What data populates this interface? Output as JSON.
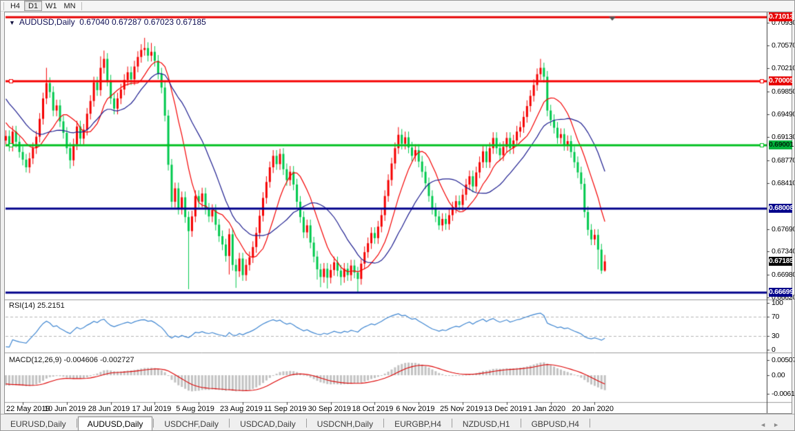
{
  "toolbar": {
    "buttons": [
      {
        "label": "H4",
        "active": false
      },
      {
        "label": "D1",
        "active": true
      },
      {
        "label": "W1",
        "active": false
      },
      {
        "label": "MN",
        "active": false
      }
    ]
  },
  "chart": {
    "title": {
      "symbol": "AUDUSD,Daily",
      "ohlc": "0.67040 0.67287 0.67023 0.67185"
    },
    "colors": {
      "bull": "#f50000",
      "bear": "#00c94d",
      "ma_fast": "#f50000",
      "ma_slow": "#1c1c8f",
      "axis_line": "#3c3c3c",
      "pane_border": "#9c9c9c",
      "level_dash": "#b4b4b4"
    },
    "y_axis_ticks": [
      "0.70930",
      "0.70570",
      "0.70210",
      "0.69850",
      "0.69490",
      "0.69130",
      "0.68770",
      "0.68410",
      "0.67690",
      "0.67340",
      "0.66980",
      "0.66620"
    ],
    "badges": [
      {
        "label": "0.71013",
        "bg": "#e60000",
        "fg": "#ffffff"
      },
      {
        "label": "0.70005",
        "bg": "#e60000",
        "fg": "#ffffff"
      },
      {
        "label": "0.69001",
        "bg": "#00b43c",
        "fg": "#00280c"
      },
      {
        "label": "0.68008",
        "bg": "#00008b",
        "fg": "#ffffff"
      },
      {
        "label": "0.67185",
        "bg": "#000000",
        "fg": "#ffffff"
      },
      {
        "label": "0.66699",
        "bg": "#00008b",
        "fg": "#ffffff"
      }
    ],
    "hlines": [
      {
        "value": 0.71013,
        "color": "#e60000",
        "width": 3,
        "anchors": false,
        "shift_marker": true
      },
      {
        "value": 0.70005,
        "color": "#f50000",
        "width": 3,
        "anchors": true,
        "shift_marker": false
      },
      {
        "value": 0.69001,
        "color": "#00c020",
        "width": 3,
        "anchors": true,
        "shift_marker": false
      },
      {
        "value": 0.68008,
        "color": "#00008b",
        "width": 3,
        "anchors": false,
        "shift_marker": false
      },
      {
        "value": 0.66699,
        "color": "#00008b",
        "width": 3,
        "anchors": false,
        "shift_marker": false
      }
    ],
    "x_axis_labels": [
      "22 May 2019",
      "10 Jun 2019",
      "28 Jun 2019",
      "17 Jul 2019",
      "5 Aug 2019",
      "23 Aug 2019",
      "11 Sep 2019",
      "30 Sep 2019",
      "18 Oct 2019",
      "6 Nov 2019",
      "25 Nov 2019",
      "13 Dec 2019",
      "1 Jan 2020",
      "20 Jan 2020"
    ]
  },
  "chart_data": {
    "type": "candlestick",
    "symbol": "AUDUSD",
    "timeframe": "Daily",
    "current_bar_ohlc": [
      0.6704,
      0.67287,
      0.67023,
      0.67185
    ],
    "ma_seed": [
      0.706,
      0.705,
      0.7042,
      0.7032,
      0.7022,
      0.7014,
      0.7004,
      0.6996,
      0.6986,
      0.6978,
      0.698,
      0.6968,
      0.696,
      0.695,
      0.694,
      0.6932,
      0.6936,
      0.6928,
      0.692,
      0.6912
    ],
    "closes": [
      0.6915,
      0.69,
      0.6922,
      0.6906,
      0.689,
      0.6878,
      0.6866,
      0.688,
      0.6896,
      0.6914,
      0.6942,
      0.6974,
      0.6998,
      0.6984,
      0.6955,
      0.6963,
      0.6938,
      0.692,
      0.6896,
      0.6877,
      0.6902,
      0.693,
      0.6911,
      0.6925,
      0.695,
      0.697,
      0.6999,
      0.6987,
      0.7022,
      0.7036,
      0.7002,
      0.6974,
      0.6958,
      0.6974,
      0.6988,
      0.7003,
      0.7015,
      0.7004,
      0.7024,
      0.7039,
      0.705,
      0.7053,
      0.7041,
      0.7047,
      0.7033,
      0.7013,
      0.6991,
      0.6947,
      0.687,
      0.6812,
      0.6833,
      0.6801,
      0.6819,
      0.6788,
      0.6766,
      0.6789,
      0.6821,
      0.6812,
      0.6825,
      0.6801,
      0.6789,
      0.6799,
      0.6776,
      0.6758,
      0.6745,
      0.6727,
      0.6761,
      0.6713,
      0.6703,
      0.6723,
      0.6697,
      0.6713,
      0.6725,
      0.6741,
      0.6763,
      0.679,
      0.6818,
      0.6843,
      0.6866,
      0.6884,
      0.6871,
      0.6887,
      0.6863,
      0.6846,
      0.6859,
      0.6839,
      0.6812,
      0.6788,
      0.6764,
      0.6775,
      0.6748,
      0.6726,
      0.6706,
      0.6694,
      0.6707,
      0.6693,
      0.6705,
      0.6717,
      0.6704,
      0.6694,
      0.6707,
      0.6697,
      0.6712,
      0.6701,
      0.6691,
      0.6715,
      0.6733,
      0.6747,
      0.6763,
      0.6755,
      0.6773,
      0.6791,
      0.6821,
      0.6846,
      0.6872,
      0.6896,
      0.6917,
      0.6903,
      0.6913,
      0.6897,
      0.6884,
      0.6893,
      0.6875,
      0.6859,
      0.6841,
      0.6821,
      0.6801,
      0.6789,
      0.6775,
      0.6785,
      0.6777,
      0.6791,
      0.6803,
      0.6813,
      0.6807,
      0.6823,
      0.6839,
      0.6852,
      0.6836,
      0.6858,
      0.6874,
      0.6891,
      0.6874,
      0.6896,
      0.6912,
      0.6896,
      0.6885,
      0.6898,
      0.6912,
      0.6896,
      0.6908,
      0.6922,
      0.6929,
      0.6945,
      0.6962,
      0.6978,
      0.6995,
      0.7012,
      0.7022,
      0.7008,
      0.6955,
      0.694,
      0.6928,
      0.6912,
      0.6918,
      0.6901,
      0.6907,
      0.689,
      0.6874,
      0.6858,
      0.684,
      0.6796,
      0.6768,
      0.6753,
      0.676,
      0.6737,
      0.6704,
      0.67185
    ],
    "overrides": {
      "0": {
        "open": 0.6908
      },
      "6": {
        "low": 0.6858
      },
      "12": {
        "high": 0.7022
      },
      "19": {
        "low": 0.6864
      },
      "28": {
        "high": 0.704
      },
      "29": {
        "high": 0.7049
      },
      "41": {
        "high": 0.7069
      },
      "43": {
        "high": 0.7061
      },
      "54": {
        "low": 0.6675
      },
      "66": {
        "low": 0.6698
      },
      "68": {
        "low": 0.6677
      },
      "70": {
        "low": 0.6688
      },
      "79": {
        "high": 0.6893
      },
      "81": {
        "high": 0.6895
      },
      "92": {
        "low": 0.669
      },
      "93": {
        "low": 0.6678
      },
      "95": {
        "low": 0.6676
      },
      "99": {
        "low": 0.6681
      },
      "104": {
        "low": 0.667
      },
      "105": {
        "high": 0.6722
      },
      "116": {
        "high": 0.6929
      },
      "128": {
        "low": 0.6768
      },
      "158": {
        "high": 0.7036
      },
      "159": {
        "high": 0.703
      },
      "175": {
        "low": 0.6706
      },
      "176": {
        "low": 0.6699
      },
      "177": {
        "open": 0.6704,
        "high": 0.67287,
        "low": 0.67023,
        "close": 0.67185
      }
    },
    "moving_averages": [
      {
        "period": 10,
        "color": "#f50000"
      },
      {
        "period": 20,
        "color": "#1c1c8f"
      }
    ]
  },
  "rsi": {
    "label": "RSI(14)",
    "value": "25.2151",
    "period": 14,
    "levels": [
      70,
      30
    ],
    "scale": [
      "100",
      "70",
      "30",
      "0"
    ],
    "color": "#3d85d1"
  },
  "macd": {
    "label": "MACD(12,26,9)",
    "values": "-0.004606 -0.002727",
    "fast": 12,
    "slow": 26,
    "signal": 9,
    "scale": [
      "0.005076",
      "0.00",
      "-0.006148"
    ],
    "hist_color": "#c2c2c2",
    "signal_color": "#dd0000"
  },
  "tabs": {
    "items": [
      {
        "label": "EURUSD,Daily",
        "active": false
      },
      {
        "label": "AUDUSD,Daily",
        "active": true
      },
      {
        "label": "USDCHF,Daily",
        "active": false
      },
      {
        "label": "USDCAD,Daily",
        "active": false
      },
      {
        "label": "USDCNH,Daily",
        "active": false
      },
      {
        "label": "EURGBP,H4",
        "active": false
      },
      {
        "label": "NZDUSD,H1",
        "active": false
      },
      {
        "label": "GBPUSD,H4",
        "active": false
      }
    ],
    "nav_left": "◄",
    "nav_right": "►"
  }
}
